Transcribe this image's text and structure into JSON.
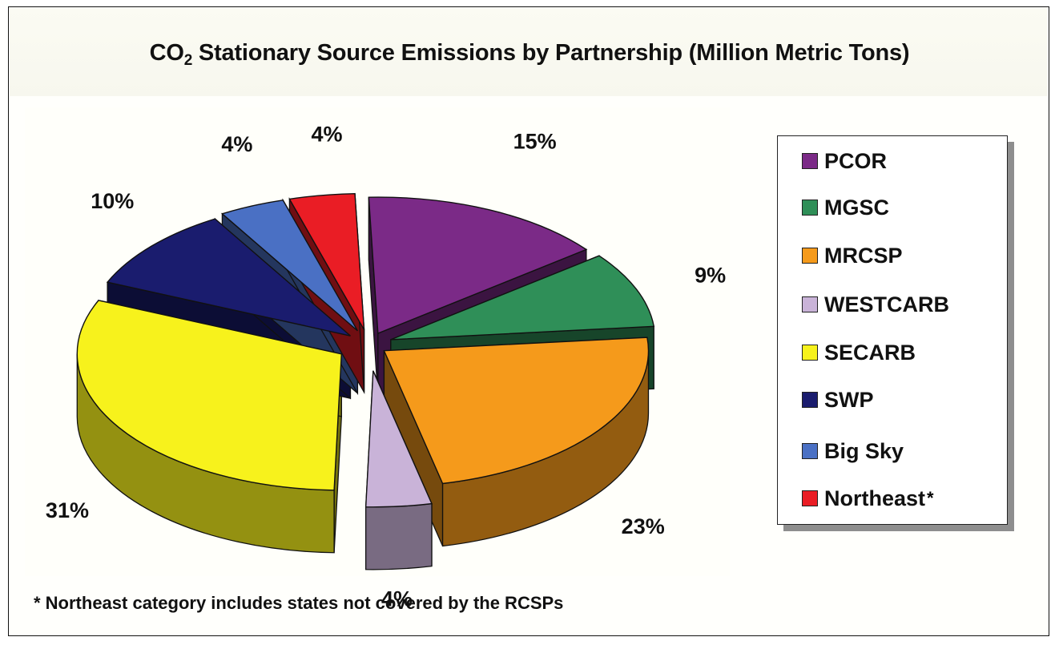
{
  "chart_data": {
    "type": "pie",
    "title_prefix": "CO",
    "title_sub": "2",
    "title_rest": " Stationary Source Emissions by Partnership (Million Metric Tons)",
    "slices": [
      {
        "name": "PCOR",
        "value": 15,
        "label": "15%",
        "color": "#7b2a87"
      },
      {
        "name": "MGSC",
        "value": 9,
        "label": "9%",
        "color": "#2f8f58"
      },
      {
        "name": "MRCSP",
        "value": 23,
        "label": "23%",
        "color": "#f59a1b"
      },
      {
        "name": "WESTCARB",
        "value": 4,
        "label": "4%",
        "color": "#c9b3d8"
      },
      {
        "name": "SECARB",
        "value": 31,
        "label": "31%",
        "color": "#f7f21c"
      },
      {
        "name": "SWP",
        "value": 10,
        "label": "10%",
        "color": "#1a1c6e"
      },
      {
        "name": "Big Sky",
        "value": 4,
        "label": "4%",
        "color": "#4a70c4"
      },
      {
        "name": "Northeast",
        "value": 4,
        "label": "4%",
        "color": "#ea1d25"
      }
    ],
    "legend": {
      "placement": "right",
      "items": [
        {
          "label": "PCOR",
          "color": "#7b2a87",
          "star": ""
        },
        {
          "label": "MGSC",
          "color": "#2f8f58",
          "star": ""
        },
        {
          "label": "MRCSP",
          "color": "#f59a1b",
          "star": ""
        },
        {
          "label": "WESTCARB",
          "color": "#c9b3d8",
          "star": ""
        },
        {
          "label": "SECARB",
          "color": "#f7f21c",
          "star": ""
        },
        {
          "label": "SWP",
          "color": "#1a1c6e",
          "star": ""
        },
        {
          "label": "Big Sky",
          "color": "#4a70c4",
          "star": ""
        },
        {
          "label": "Northeast",
          "color": "#ea1d25",
          "star": "*"
        }
      ]
    },
    "footnote": "* Northeast category includes states not covered by the RCSPs"
  }
}
